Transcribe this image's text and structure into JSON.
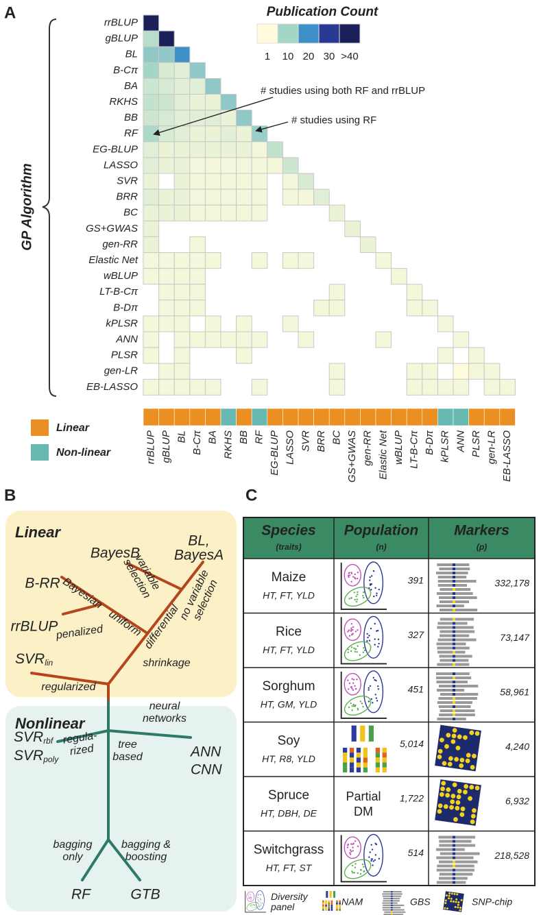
{
  "chart_data": {
    "type": "heatmap",
    "panel": "A",
    "title": "Publication Count",
    "y_label": "GP Algorithm",
    "categories": [
      "rrBLUP",
      "gBLUP",
      "BL",
      "B-Cπ",
      "BA",
      "RKHS",
      "BB",
      "RF",
      "EG-BLUP",
      "LASSO",
      "SVR",
      "BRR",
      "BC",
      "GS+GWAS",
      "gen-RR",
      "Elastic Net",
      "wBLUP",
      "LT-B-Cπ",
      "B-Dπ",
      "kPLSR",
      "ANN",
      "PLSR",
      "gen-LR",
      "EB-LASSO"
    ],
    "matrix": [
      [
        42
      ],
      [
        8,
        40
      ],
      [
        12,
        12,
        20
      ],
      [
        10,
        5,
        4,
        12
      ],
      [
        6,
        5,
        4,
        4,
        12
      ],
      [
        7,
        6,
        4,
        3,
        3,
        12
      ],
      [
        6,
        5,
        4,
        4,
        4,
        3,
        12
      ],
      [
        9,
        5,
        4,
        3,
        3,
        4,
        3,
        11
      ],
      [
        4,
        3,
        3,
        3,
        3,
        3,
        3,
        2,
        7
      ],
      [
        4,
        3,
        3,
        2,
        2,
        2,
        2,
        2,
        2,
        6
      ],
      [
        3,
        null,
        3,
        2,
        2,
        2,
        2,
        2,
        null,
        2,
        5
      ],
      [
        4,
        3,
        3,
        2,
        2,
        2,
        2,
        2,
        null,
        2,
        2,
        4
      ],
      [
        3,
        3,
        3,
        2,
        2,
        2,
        2,
        2,
        null,
        null,
        null,
        null,
        3
      ],
      [
        3,
        null,
        null,
        null,
        null,
        null,
        null,
        null,
        null,
        null,
        null,
        null,
        null,
        3
      ],
      [
        3,
        null,
        null,
        2,
        null,
        null,
        null,
        null,
        null,
        null,
        null,
        null,
        null,
        null,
        3
      ],
      [
        2,
        2,
        2,
        2,
        2,
        null,
        null,
        2,
        null,
        2,
        2,
        null,
        null,
        null,
        null,
        2
      ],
      [
        2,
        2,
        2,
        2,
        null,
        null,
        null,
        null,
        null,
        null,
        null,
        null,
        null,
        null,
        null,
        null,
        2
      ],
      [
        null,
        2,
        2,
        2,
        null,
        null,
        null,
        null,
        null,
        null,
        null,
        null,
        2,
        null,
        null,
        null,
        null,
        2
      ],
      [
        null,
        2,
        2,
        2,
        null,
        null,
        null,
        null,
        null,
        null,
        null,
        2,
        2,
        null,
        null,
        null,
        null,
        2,
        2
      ],
      [
        2,
        2,
        2,
        null,
        2,
        null,
        2,
        null,
        null,
        2,
        null,
        null,
        null,
        null,
        null,
        null,
        null,
        null,
        null,
        2
      ],
      [
        2,
        null,
        2,
        2,
        2,
        2,
        2,
        2,
        null,
        null,
        2,
        null,
        null,
        null,
        null,
        2,
        null,
        null,
        null,
        null,
        2
      ],
      [
        2,
        null,
        2,
        null,
        null,
        null,
        2,
        null,
        null,
        null,
        null,
        null,
        null,
        null,
        null,
        null,
        null,
        null,
        null,
        2,
        null,
        2
      ],
      [
        null,
        2,
        2,
        null,
        null,
        null,
        null,
        null,
        null,
        null,
        null,
        null,
        2,
        null,
        null,
        null,
        null,
        2,
        2,
        null,
        1,
        2,
        2
      ],
      [
        2,
        2,
        2,
        2,
        2,
        null,
        null,
        2,
        null,
        null,
        null,
        null,
        2,
        null,
        null,
        null,
        null,
        2,
        2,
        2,
        2,
        null,
        2,
        2
      ]
    ],
    "color_scale": {
      "ticks": [
        1,
        10,
        20,
        30,
        {
          "value": 40,
          "label": ">40"
        }
      ],
      "colors": [
        "#fffbdc",
        "#a3d6c6",
        "#3f8fc8",
        "#2a3a94",
        "#1b1f5a"
      ]
    },
    "classes": {
      "names": [
        "Linear",
        "Non-linear"
      ],
      "colors": [
        "#ec8f22",
        "#67b8b0"
      ],
      "category_class": [
        "Linear",
        "Linear",
        "Linear",
        "Linear",
        "Linear",
        "Non-linear",
        "Linear",
        "Non-linear",
        "Linear",
        "Linear",
        "Linear",
        "Linear",
        "Linear",
        "Linear",
        "Linear",
        "Linear",
        "Linear",
        "Linear",
        "Linear",
        "Non-linear",
        "Non-linear",
        "Linear",
        "Linear",
        "Linear"
      ]
    },
    "annotations": [
      "# studies using both RF and rrBLUP",
      "# studies using RF"
    ]
  },
  "tree": {
    "panel": "B",
    "groups": [
      "Linear",
      "Nonlinear"
    ],
    "nodes": [
      {
        "lines": [
          "BL,",
          "BayesA"
        ]
      },
      {
        "lines": [
          "BayesB"
        ]
      },
      {
        "lines": [
          "B-RR"
        ]
      },
      {
        "lines": [
          "rrBLUP"
        ]
      },
      {
        "lines": [
          {
            "text": "SVR",
            "sub": "lin"
          }
        ]
      },
      {
        "lines": [
          {
            "text": "SVR",
            "sub": "rbf"
          },
          {
            "text": "SVR",
            "sub": "poly"
          }
        ]
      },
      {
        "lines": [
          "ANN",
          "CNN"
        ]
      },
      {
        "lines": [
          "RF"
        ]
      },
      {
        "lines": [
          "GTB"
        ]
      }
    ],
    "edges": [
      {
        "lines": [
          "variable",
          "selection"
        ]
      },
      {
        "lines": [
          "no variable",
          "selection"
        ]
      },
      {
        "lines": [
          "Bayesian"
        ]
      },
      {
        "lines": [
          "uniform"
        ]
      },
      {
        "lines": [
          "penalized"
        ]
      },
      {
        "lines": [
          "differential"
        ]
      },
      {
        "lines": [
          "shrinkage"
        ]
      },
      {
        "lines": [
          "regularized"
        ]
      },
      {
        "lines": [
          "neural",
          "networks"
        ]
      },
      {
        "lines": [
          "regula-",
          "rized"
        ]
      },
      {
        "lines": [
          "tree",
          "based"
        ]
      },
      {
        "lines": [
          "bagging",
          "only"
        ]
      },
      {
        "lines": [
          "bagging &",
          "boosting"
        ]
      }
    ]
  },
  "table": {
    "panel": "C",
    "header": [
      {
        "title": "Species",
        "sub": "(traits)"
      },
      {
        "title": "Population",
        "sub": "(n)"
      },
      {
        "title": "Markers",
        "sub": "(p)"
      }
    ],
    "rows": [
      {
        "species": "Maize",
        "traits": "HT, FT, YLD",
        "n": "391",
        "p": "332,178"
      },
      {
        "species": "Rice",
        "traits": "HT, FT, YLD",
        "n": "327",
        "p": "73,147"
      },
      {
        "species": "Sorghum",
        "traits": "HT, GM, YLD",
        "n": "451",
        "p": "58,961"
      },
      {
        "species": "Soy",
        "traits": "HT, R8, YLD",
        "n": "5,014",
        "p": "4,240"
      },
      {
        "species": "Spruce",
        "traits": "HT, DBH, DE",
        "population_label": [
          "Partial",
          "DM"
        ],
        "n": "1,722",
        "p": "6,932"
      },
      {
        "species": "Switchgrass",
        "traits": "HT, FT, ST",
        "n": "514",
        "p": "218,528"
      }
    ],
    "legend": [
      {
        "lines": [
          "Diversity",
          "panel"
        ]
      },
      {
        "lines": [
          "NAM"
        ]
      },
      {
        "lines": [
          "GBS"
        ]
      },
      {
        "lines": [
          "SNP-chip"
        ]
      }
    ]
  }
}
